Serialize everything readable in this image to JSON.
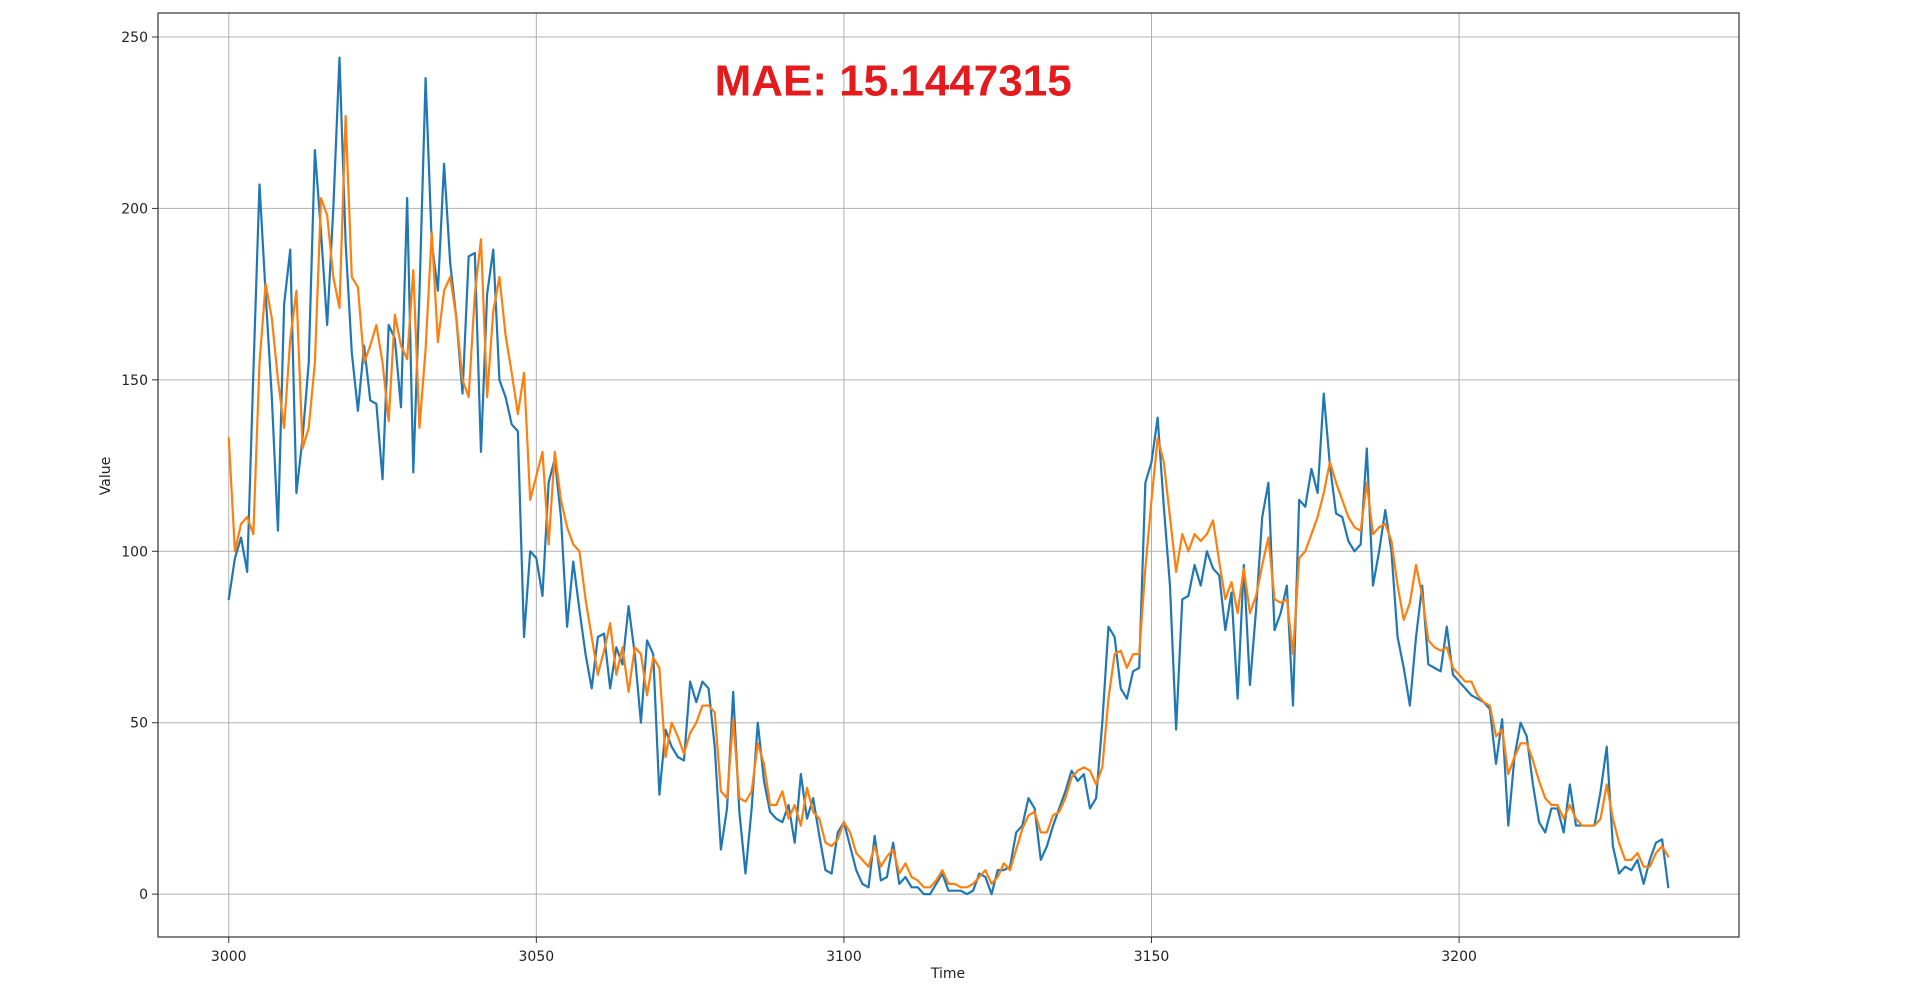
{
  "chart_data": {
    "type": "line",
    "title": "",
    "xlabel": "Time",
    "ylabel": "Value",
    "xlim": [
      2988.5,
      3245.5
    ],
    "ylim": [
      -12.5,
      257
    ],
    "xticks": [
      3000,
      3050,
      3100,
      3150,
      3200
    ],
    "yticks": [
      0,
      50,
      100,
      150,
      200,
      250
    ],
    "grid": true,
    "legend": "none",
    "annotation": {
      "text": "MAE: 15.1447315",
      "color": "#e41a1c",
      "x": 3108,
      "y": 233
    },
    "x_start": 3000,
    "x_step": 1,
    "series": [
      {
        "color": "#1f77b4",
        "values": [
          86,
          98,
          104,
          94,
          152,
          207,
          175,
          145,
          106,
          172,
          188,
          117,
          133,
          155,
          217,
          193,
          166,
          200,
          244,
          190,
          158,
          141,
          160,
          144,
          143,
          121,
          166,
          162,
          142,
          203,
          123,
          175,
          238,
          190,
          176,
          213,
          184,
          168,
          146,
          186,
          187,
          129,
          175,
          188,
          150,
          145,
          137,
          135,
          75,
          100,
          98,
          87,
          120,
          127,
          110,
          78,
          97,
          83,
          70,
          60,
          75,
          76,
          60,
          72,
          67,
          84,
          70,
          50,
          74,
          70,
          29,
          48,
          43,
          40,
          39,
          62,
          56,
          62,
          60,
          43,
          13,
          25,
          59,
          24,
          6,
          25,
          50,
          33,
          24,
          22,
          21,
          26,
          15,
          35,
          22,
          28,
          17,
          7,
          6,
          18,
          21,
          14,
          7,
          3,
          2,
          17,
          4,
          5,
          15,
          3,
          5,
          2,
          2,
          0,
          0,
          3,
          6,
          1,
          1,
          1,
          0,
          1,
          6,
          5,
          0,
          7,
          7,
          8,
          18,
          20,
          28,
          25,
          10,
          14,
          20,
          25,
          30,
          36,
          33,
          35,
          25,
          28,
          50,
          78,
          75,
          60,
          57,
          65,
          66,
          120,
          126,
          139,
          113,
          90,
          48,
          86,
          87,
          96,
          90,
          100,
          95,
          93,
          77,
          88,
          57,
          96,
          61,
          83,
          110,
          120,
          77,
          82,
          90,
          55,
          115,
          113,
          124,
          117,
          146,
          125,
          111,
          110,
          103,
          100,
          102,
          130,
          90,
          100,
          112,
          100,
          75,
          66,
          55,
          75,
          90,
          67,
          66,
          65,
          78,
          64,
          62,
          60,
          58,
          57,
          56,
          54,
          38,
          51,
          20,
          40,
          50,
          46,
          32,
          21,
          18,
          25,
          25,
          18,
          32,
          20,
          20,
          20,
          20,
          30,
          43,
          14,
          6,
          8,
          7,
          10,
          3,
          10,
          15,
          16,
          2
        ]
      },
      {
        "color": "#ff7f0e",
        "values": [
          133,
          100,
          108,
          110,
          105,
          155,
          178,
          168,
          150,
          136,
          162,
          176,
          130,
          136,
          155,
          203,
          198,
          180,
          171,
          227,
          180,
          177,
          155,
          160,
          166,
          155,
          138,
          169,
          160,
          156,
          182,
          136,
          159,
          193,
          161,
          176,
          180,
          168,
          150,
          145,
          175,
          191,
          145,
          170,
          180,
          163,
          152,
          140,
          152,
          115,
          122,
          129,
          102,
          129,
          115,
          107,
          102,
          100,
          86,
          75,
          64,
          71,
          79,
          64,
          72,
          59,
          72,
          70,
          58,
          69,
          66,
          40,
          50,
          46,
          41,
          47,
          50,
          55,
          55,
          53,
          30,
          28,
          51,
          28,
          27,
          30,
          44,
          38,
          26,
          26,
          30,
          22,
          26,
          20,
          31,
          24,
          22,
          15,
          14,
          16,
          21,
          18,
          12,
          10,
          8,
          14,
          8,
          11,
          13,
          6,
          9,
          5,
          4,
          2,
          2,
          4,
          7,
          3,
          3,
          2,
          2,
          3,
          5,
          7,
          3,
          5,
          9,
          7,
          13,
          19,
          23,
          24,
          18,
          18,
          23,
          24,
          28,
          34,
          36,
          37,
          36,
          32,
          37,
          57,
          70,
          71,
          66,
          70,
          70,
          95,
          115,
          133,
          126,
          110,
          94,
          105,
          100,
          105,
          103,
          105,
          109,
          97,
          86,
          91,
          82,
          95,
          82,
          87,
          96,
          104,
          86,
          85,
          86,
          70,
          98,
          100,
          105,
          110,
          117,
          126,
          120,
          115,
          110,
          107,
          106,
          120,
          105,
          107,
          108,
          103,
          90,
          80,
          85,
          96,
          87,
          74,
          72,
          71,
          72,
          66,
          64,
          62,
          62,
          58,
          56,
          55,
          46,
          48,
          35,
          40,
          44,
          44,
          39,
          33,
          28,
          26,
          26,
          22,
          26,
          22,
          20,
          20,
          20,
          22,
          32,
          22,
          15,
          10,
          10,
          12,
          8,
          8,
          12,
          14,
          11
        ]
      }
    ]
  }
}
